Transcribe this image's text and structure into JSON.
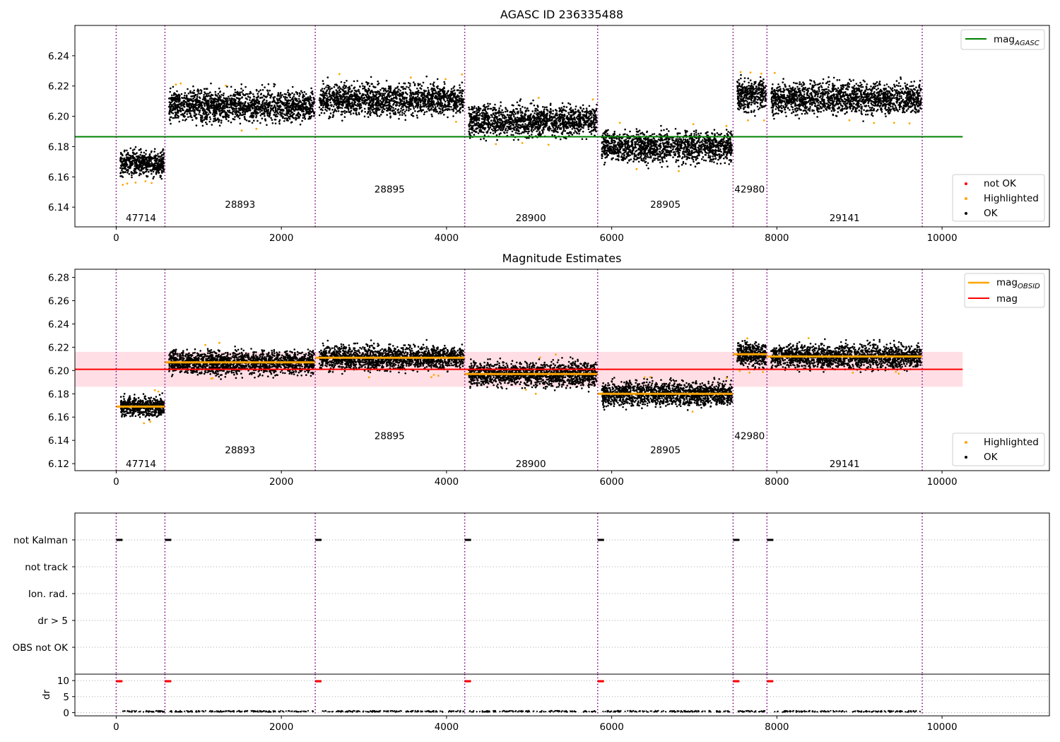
{
  "chart_data": [
    {
      "type": "scatter",
      "title": "AGASC ID 236335488",
      "xlim": [
        -500,
        11300
      ],
      "ylim": [
        6.127,
        6.26
      ],
      "xticks": [
        0,
        2000,
        4000,
        6000,
        8000,
        10000
      ],
      "yticks": [
        6.14,
        6.16,
        6.18,
        6.2,
        6.22,
        6.24
      ],
      "obs_boundaries": [
        0,
        590,
        2410,
        4220,
        5830,
        7470,
        7880,
        9760
      ],
      "observations": [
        {
          "obsid": "47714",
          "x_start": 0,
          "x_end": 590,
          "mag": 6.169,
          "spread": 0.004
        },
        {
          "obsid": "28893",
          "x_start": 590,
          "x_end": 2410,
          "mag": 6.207,
          "spread": 0.005
        },
        {
          "obsid": "28895",
          "x_start": 2410,
          "x_end": 4220,
          "mag": 6.211,
          "spread": 0.005
        },
        {
          "obsid": "28900",
          "x_start": 4220,
          "x_end": 5830,
          "mag": 6.197,
          "spread": 0.005
        },
        {
          "obsid": "28905",
          "x_start": 5830,
          "x_end": 7470,
          "mag": 6.18,
          "spread": 0.005
        },
        {
          "obsid": "42980",
          "x_start": 7470,
          "x_end": 7880,
          "mag": 6.214,
          "spread": 0.005
        },
        {
          "obsid": "29141",
          "x_start": 7880,
          "x_end": 9760,
          "mag": 6.212,
          "spread": 0.005
        }
      ],
      "obsid_labels": [
        {
          "text": "47714",
          "x": 300,
          "y": 6.133
        },
        {
          "text": "28893",
          "x": 1500,
          "y": 6.142
        },
        {
          "text": "28895",
          "x": 3310,
          "y": 6.152
        },
        {
          "text": "28900",
          "x": 5020,
          "y": 6.133
        },
        {
          "text": "28905",
          "x": 6650,
          "y": 6.142
        },
        {
          "text": "42980",
          "x": 7670,
          "y": 6.152
        },
        {
          "text": "29141",
          "x": 8820,
          "y": 6.133
        }
      ],
      "mag_agasc": {
        "value": 6.1865,
        "x_range": [
          -500,
          10250
        ]
      },
      "legend_lines": [
        {
          "label": "mag",
          "sub": "AGASC",
          "color": "#008000"
        }
      ],
      "legend_points": [
        {
          "label": "not OK",
          "color": "#ff0000"
        },
        {
          "label": "Highlighted",
          "color": "#ffa500"
        },
        {
          "label": "OK",
          "color": "#000000"
        }
      ]
    },
    {
      "type": "scatter",
      "title": "Magnitude Estimates",
      "xlim": [
        -500,
        11300
      ],
      "ylim": [
        6.114,
        6.287
      ],
      "xticks": [
        0,
        2000,
        4000,
        6000,
        8000,
        10000
      ],
      "yticks": [
        6.12,
        6.14,
        6.16,
        6.18,
        6.2,
        6.22,
        6.24,
        6.26,
        6.28
      ],
      "mag": {
        "value": 6.201,
        "band": [
          6.186,
          6.216
        ],
        "x_range": [
          -500,
          10250
        ]
      },
      "obsid_labels": [
        {
          "text": "47714",
          "x": 300,
          "y": 6.12
        },
        {
          "text": "28893",
          "x": 1500,
          "y": 6.132
        },
        {
          "text": "28895",
          "x": 3310,
          "y": 6.144
        },
        {
          "text": "28900",
          "x": 5020,
          "y": 6.12
        },
        {
          "text": "28905",
          "x": 6650,
          "y": 6.132
        },
        {
          "text": "42980",
          "x": 7670,
          "y": 6.144
        },
        {
          "text": "29141",
          "x": 8820,
          "y": 6.12
        }
      ],
      "legend_lines": [
        {
          "label": "mag",
          "sub": "OBSID",
          "color": "#ffa500"
        },
        {
          "label": "mag",
          "sub": "",
          "color": "#ff0000"
        }
      ],
      "legend_points": [
        {
          "label": "Highlighted",
          "color": "#ffa500"
        },
        {
          "label": "OK",
          "color": "#000000"
        }
      ]
    },
    {
      "type": "scatter",
      "title": "",
      "xlim": [
        -500,
        11300
      ],
      "flags": [
        "not Kalman",
        "not track",
        "Ion. rad.",
        "dr > 5",
        "OBS not OK"
      ],
      "not_kalman_starts": [
        0,
        590,
        2410,
        4220,
        5830,
        7470,
        7880
      ]
    },
    {
      "type": "scatter",
      "title": "",
      "ylabel": "dr",
      "xlim": [
        -500,
        11300
      ],
      "ylim": [
        -1,
        12
      ],
      "xticks": [
        0,
        2000,
        4000,
        6000,
        8000,
        10000
      ],
      "yticks": [
        0,
        5,
        10
      ]
    }
  ]
}
